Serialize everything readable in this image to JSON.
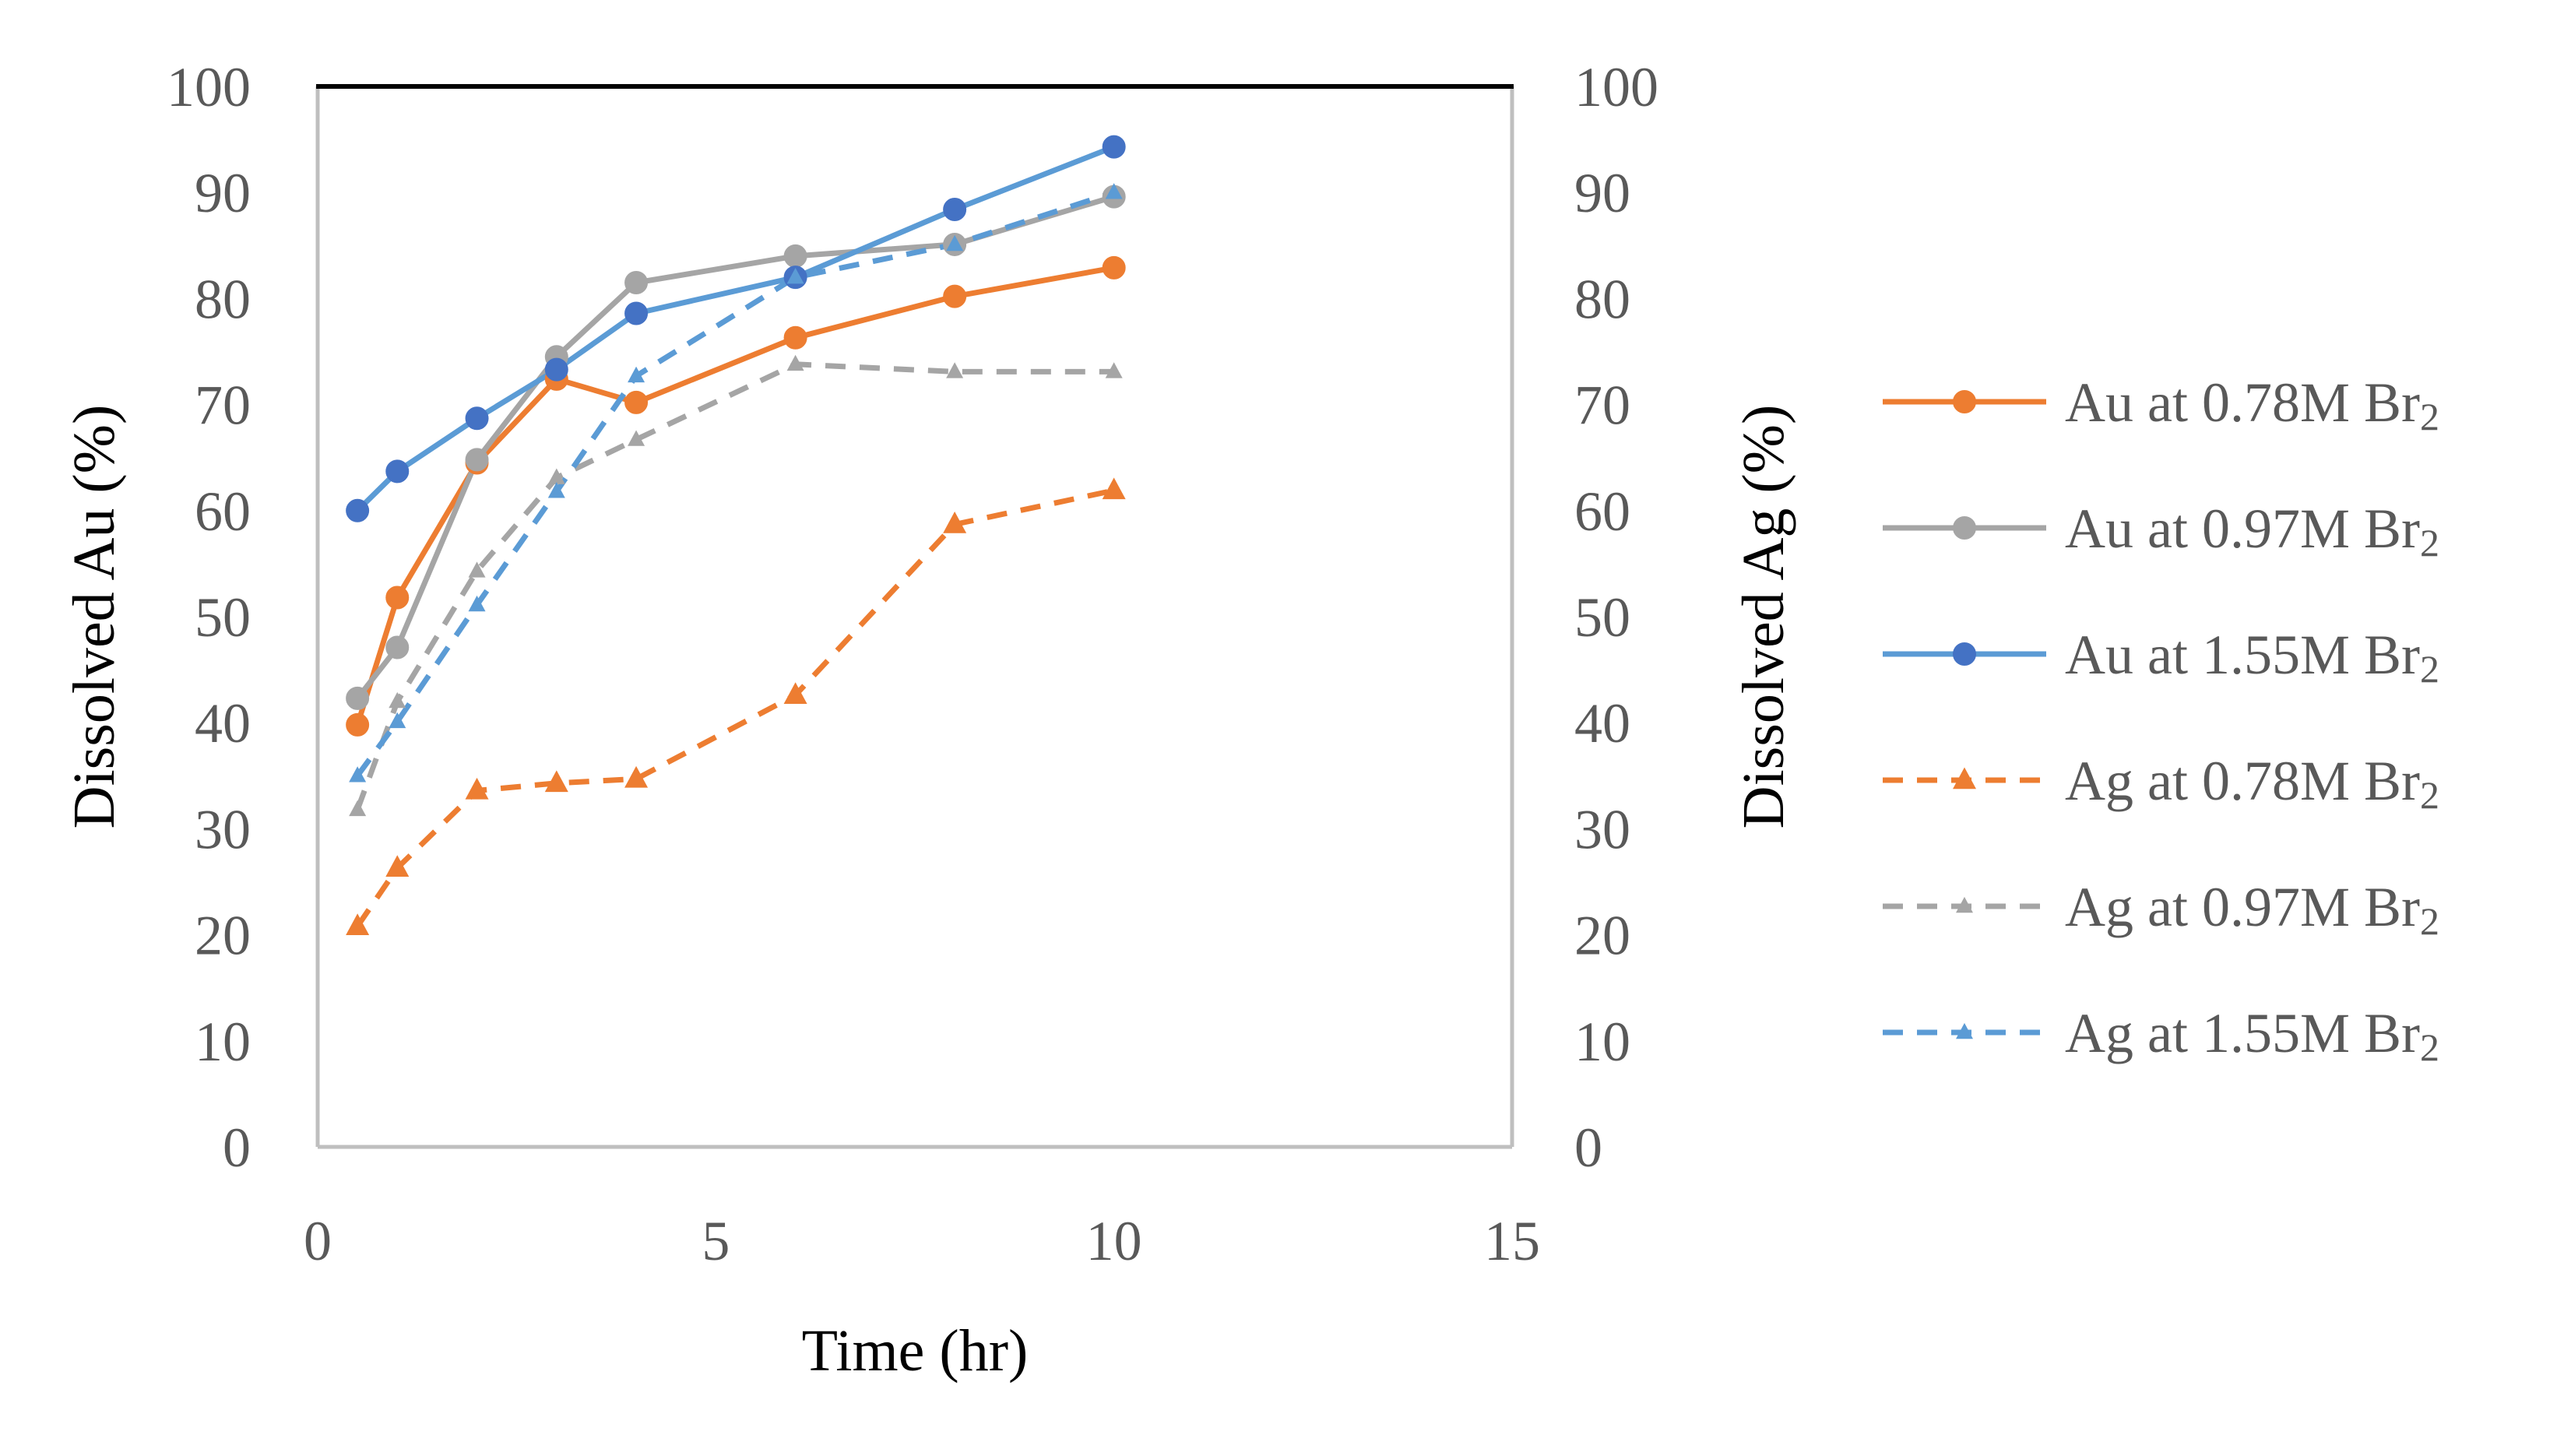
{
  "chart_data": {
    "type": "line",
    "title": "",
    "xlabel": "Time (hr)",
    "ylabel": "Dissolved Au (%)",
    "y2label": "Dissolved Ag (%)",
    "xlim": [
      0,
      15
    ],
    "ylim": [
      0,
      100
    ],
    "y2lim": [
      0,
      100
    ],
    "xticks": [
      "0",
      "5",
      "10",
      "15"
    ],
    "yticks": [
      "0",
      "10",
      "20",
      "30",
      "40",
      "50",
      "60",
      "70",
      "80",
      "90",
      "100"
    ],
    "y2ticks": [
      "0",
      "10",
      "20",
      "30",
      "40",
      "50",
      "60",
      "70",
      "80",
      "90",
      "100"
    ],
    "grid": false,
    "legend_position": "right",
    "series": [
      {
        "name": "Au at 0.78M Br",
        "subscript": "2",
        "axis": "left",
        "color": "#ED7D31",
        "dash": "solid",
        "marker": "circle",
        "x": [
          0.5,
          1,
          2,
          3,
          4,
          6,
          8,
          10
        ],
        "y": [
          39.8,
          51.8,
          64.5,
          72.4,
          70.2,
          76.3,
          80.2,
          82.9
        ]
      },
      {
        "name": "Au at 0.97M Br",
        "subscript": "2",
        "axis": "left",
        "color": "#A5A5A5",
        "dash": "solid",
        "marker": "circle",
        "x": [
          0.5,
          1,
          2,
          3,
          4,
          6,
          8,
          10
        ],
        "y": [
          42.3,
          47.1,
          64.8,
          74.5,
          81.5,
          84.0,
          85.1,
          89.6
        ]
      },
      {
        "name": "Au at 1.55M Br",
        "subscript": "2",
        "axis": "left",
        "color": "#5B9BD5",
        "markerColor": "#4472C4",
        "dash": "solid",
        "marker": "circle",
        "x": [
          0.5,
          1,
          2,
          3,
          4,
          6,
          8,
          10
        ],
        "y": [
          60.0,
          63.7,
          68.7,
          73.3,
          78.6,
          82.0,
          88.4,
          94.3
        ]
      },
      {
        "name": "Ag at 0.78M Br",
        "subscript": "2",
        "axis": "right",
        "color": "#ED7D31",
        "dash": "dashed",
        "marker": "triangle",
        "x": [
          0.5,
          1,
          2,
          3,
          4,
          6,
          8,
          10
        ],
        "y": [
          20.8,
          26.3,
          33.6,
          34.3,
          34.7,
          42.6,
          58.7,
          61.9
        ]
      },
      {
        "name": "Ag at 0.97M Br",
        "subscript": "2",
        "axis": "right",
        "color": "#A5A5A5",
        "dash": "dashed",
        "marker": "triangle-small",
        "x": [
          0.5,
          1,
          2,
          3,
          4,
          6,
          8,
          10
        ],
        "y": [
          31.8,
          42.0,
          54.3,
          63.1,
          66.7,
          73.8,
          73.1,
          73.1
        ]
      },
      {
        "name": "Ag at 1.55M Br",
        "subscript": "2",
        "axis": "right",
        "color": "#5B9BD5",
        "dash": "dashed",
        "marker": "triangle-small",
        "x": [
          0.5,
          1,
          2,
          3,
          4,
          6,
          8,
          10
        ],
        "y": [
          35.0,
          40.1,
          51.1,
          61.8,
          72.7,
          82.0,
          85.1,
          90.0
        ]
      }
    ]
  }
}
